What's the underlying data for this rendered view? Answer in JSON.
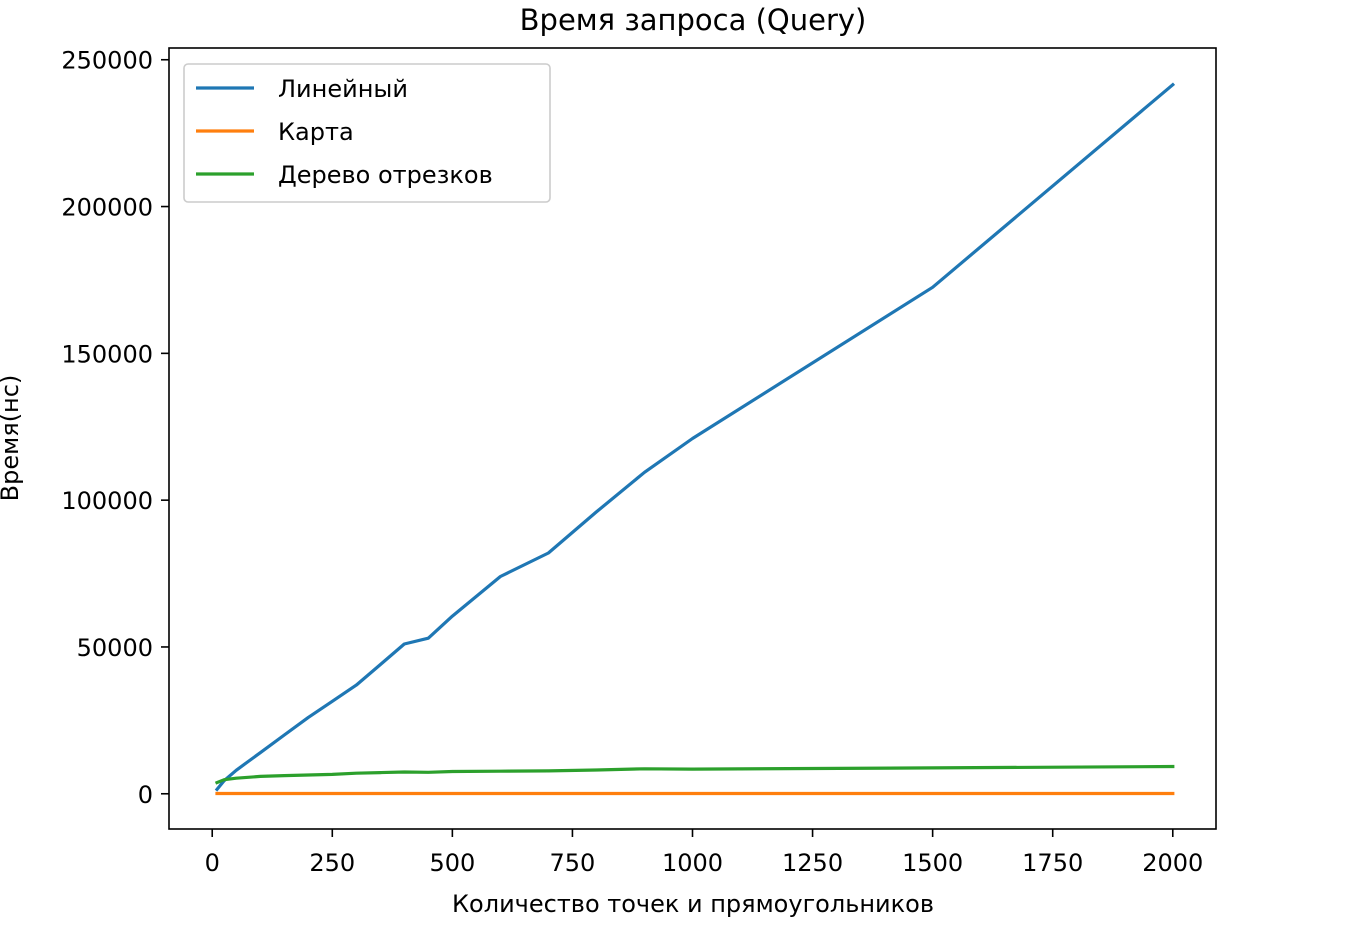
{
  "chart_data": {
    "type": "line",
    "title": "Время запроса (Query)",
    "xlabel": "Количество точек и прямоугольников",
    "ylabel": "Время(нс)",
    "xlim": [
      -90,
      2090
    ],
    "ylim": [
      -12000,
      254000
    ],
    "xticks": [
      0,
      250,
      500,
      750,
      1000,
      1250,
      1500,
      1750,
      2000
    ],
    "yticks": [
      0,
      50000,
      100000,
      150000,
      200000,
      250000
    ],
    "grid": false,
    "legend_position": "top-left",
    "series": [
      {
        "name": "Линейный",
        "color": "#1f77b4",
        "x": [
          10,
          25,
          50,
          75,
          100,
          150,
          200,
          250,
          300,
          350,
          400,
          450,
          500,
          600,
          700,
          800,
          900,
          1000,
          1500,
          2000
        ],
        "y": [
          1500,
          4500,
          8000,
          11000,
          14000,
          20000,
          26000,
          31500,
          37000,
          44000,
          51000,
          53000,
          60500,
          74000,
          82000,
          96000,
          109500,
          121000,
          172500,
          241500
        ]
      },
      {
        "name": "Карта",
        "color": "#ff7f0e",
        "x": [
          10,
          25,
          50,
          75,
          100,
          150,
          200,
          250,
          300,
          350,
          400,
          450,
          500,
          600,
          700,
          800,
          900,
          1000,
          1500,
          2000
        ],
        "y": [
          100,
          100,
          100,
          100,
          100,
          100,
          100,
          100,
          100,
          100,
          100,
          100,
          100,
          100,
          100,
          100,
          100,
          100,
          100,
          100
        ]
      },
      {
        "name": "Дерево отрезков",
        "color": "#2ca02c",
        "x": [
          10,
          25,
          50,
          75,
          100,
          150,
          200,
          250,
          300,
          350,
          400,
          450,
          500,
          600,
          700,
          800,
          900,
          1000,
          1500,
          2000
        ],
        "y": [
          3800,
          4800,
          5300,
          5600,
          5900,
          6200,
          6400,
          6600,
          7000,
          7200,
          7400,
          7300,
          7600,
          7700,
          7800,
          8100,
          8500,
          8400,
          8800,
          9300
        ]
      }
    ]
  }
}
